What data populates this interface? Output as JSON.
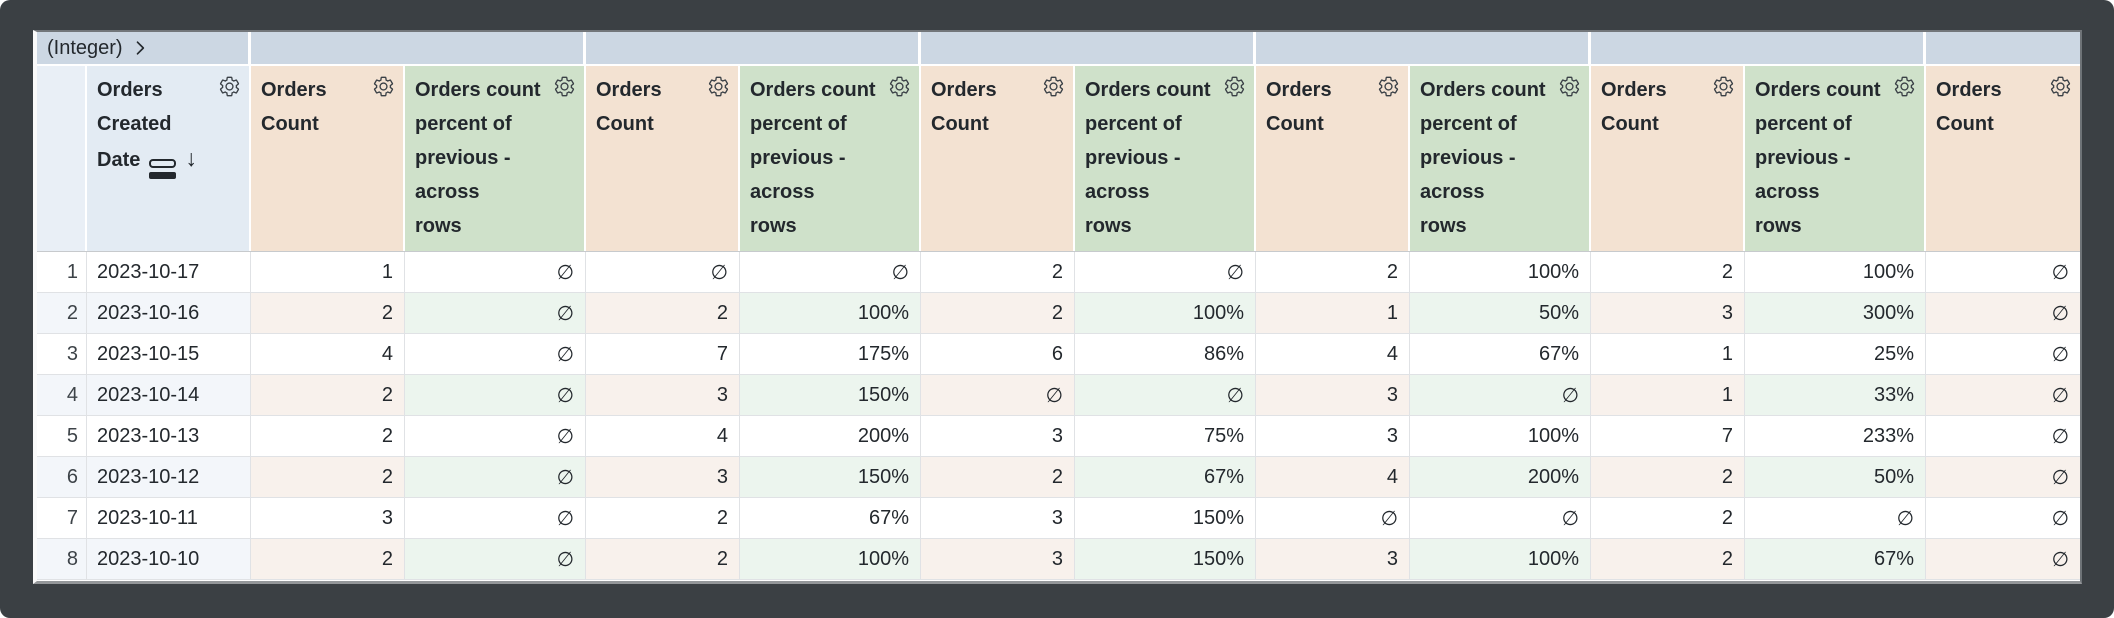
{
  "window": {
    "background": "#3b4044"
  },
  "pivot_header": {
    "field_label": "(Integer)",
    "chevron_icon": "chevron-right",
    "value_cells": [
      "",
      "",
      "",
      "",
      "",
      ""
    ]
  },
  "column_headers": {
    "row_number": "",
    "dimension": {
      "label": "Orders Created Date",
      "lines": [
        "Orders",
        "Created",
        "Date"
      ],
      "sort_glyph": "↓",
      "icons": [
        "date-granularity-icon",
        "sort-descending-icon",
        "gear-icon"
      ]
    },
    "measure_count": {
      "label": "Orders Count",
      "lines": [
        "Orders",
        "Count"
      ],
      "icons": [
        "gear-icon"
      ]
    },
    "measure_percent": {
      "label": "Orders count percent of previous - across rows",
      "lines": [
        "Orders count",
        "percent of",
        "previous -",
        "across",
        "rows"
      ],
      "icons": [
        "gear-icon"
      ]
    }
  },
  "null_symbol": "∅",
  "rows": [
    {
      "num": "1",
      "date": "2023-10-17",
      "cells": [
        "1",
        "∅",
        "∅",
        "∅",
        "2",
        "∅",
        "2",
        "100%",
        "2",
        "100%",
        "∅"
      ]
    },
    {
      "num": "2",
      "date": "2023-10-16",
      "cells": [
        "2",
        "∅",
        "2",
        "100%",
        "2",
        "100%",
        "1",
        "50%",
        "3",
        "300%",
        "∅"
      ]
    },
    {
      "num": "3",
      "date": "2023-10-15",
      "cells": [
        "4",
        "∅",
        "7",
        "175%",
        "6",
        "86%",
        "4",
        "67%",
        "1",
        "25%",
        "∅"
      ]
    },
    {
      "num": "4",
      "date": "2023-10-14",
      "cells": [
        "2",
        "∅",
        "3",
        "150%",
        "∅",
        "∅",
        "3",
        "∅",
        "1",
        "33%",
        "∅"
      ]
    },
    {
      "num": "5",
      "date": "2023-10-13",
      "cells": [
        "2",
        "∅",
        "4",
        "200%",
        "3",
        "75%",
        "3",
        "100%",
        "7",
        "233%",
        "∅"
      ]
    },
    {
      "num": "6",
      "date": "2023-10-12",
      "cells": [
        "2",
        "∅",
        "3",
        "150%",
        "2",
        "67%",
        "4",
        "200%",
        "2",
        "50%",
        "∅"
      ]
    },
    {
      "num": "7",
      "date": "2023-10-11",
      "cells": [
        "3",
        "∅",
        "2",
        "67%",
        "3",
        "150%",
        "∅",
        "∅",
        "2",
        "∅",
        "∅"
      ]
    },
    {
      "num": "8",
      "date": "2023-10-10",
      "cells": [
        "2",
        "∅",
        "2",
        "100%",
        "3",
        "150%",
        "3",
        "100%",
        "2",
        "67%",
        "∅"
      ]
    }
  ],
  "colors": {
    "window_bg": "#3b4044",
    "pivot_row_bg": "#ccd7e3",
    "row_number_header_bg": "#e9eff6",
    "dimension_header_bg": "#e3ebf3",
    "count_header_bg": "#f3e2d2",
    "percent_header_bg": "#cfe1ca",
    "even_row_dim_bg": "#f3f6fa",
    "even_row_count_bg": "#f8f1ec",
    "even_row_percent_bg": "#ecf5ee",
    "text": "#23282d"
  }
}
